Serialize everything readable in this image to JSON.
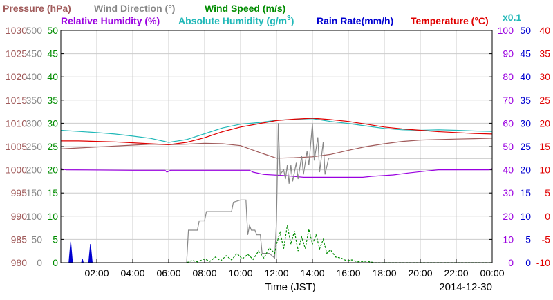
{
  "chart_data": {
    "type": "line",
    "xlabel": "Time (JST)",
    "date": "2014-12-30",
    "x_ticks": [
      "02:00",
      "04:00",
      "06:00",
      "08:00",
      "10:00",
      "12:00",
      "14:00",
      "16:00",
      "18:00",
      "20:00",
      "22:00",
      "00:00"
    ],
    "x_range_hours": [
      0,
      24
    ],
    "legend": {
      "pressure": "Pressure (hPa)",
      "wind_dir": "Wind Direction (°)",
      "wind_speed": "Wind Speed (m/s)",
      "humidity": "Relative Humidity (%)",
      "abs_humidity_prefix": "Absolute Humidity (g/m",
      "abs_humidity_exp": "3",
      "abs_humidity_suffix": ")",
      "rain": "Rain Rate(mm/h)",
      "temperature": "Temperature (°C)",
      "scale_note": "x0.1"
    },
    "axes": {
      "pressure": {
        "min": 980,
        "max": 1030,
        "ticks": [
          "980",
          "985",
          "990",
          "995",
          "1000",
          "1005",
          "1010",
          "1015",
          "1020",
          "1025",
          "1030"
        ],
        "color": "#a05a5a"
      },
      "wind_dir": {
        "min": 0,
        "max": 500,
        "ticks": [
          "0",
          "50",
          "100",
          "150",
          "200",
          "250",
          "300",
          "350",
          "400",
          "450",
          "500"
        ],
        "color": "#888888"
      },
      "wind_speed": {
        "min": 0,
        "max": 50,
        "ticks": [
          "0",
          "5",
          "10",
          "15",
          "20",
          "25",
          "30",
          "35",
          "40",
          "45",
          "50"
        ],
        "color": "#008c00"
      },
      "humidity": {
        "min": 0,
        "max": 100,
        "ticks": [
          "0",
          "10",
          "20",
          "30",
          "40",
          "50",
          "60",
          "70",
          "80",
          "90",
          "100"
        ],
        "color": "#9a00e0"
      },
      "rain": {
        "min": 0,
        "max": 50,
        "ticks": [
          "0",
          "5",
          "10",
          "15",
          "20",
          "25",
          "30",
          "35",
          "40",
          "45",
          "50"
        ],
        "color": "#0000d0"
      },
      "temperature": {
        "min": -10,
        "max": 40,
        "ticks": [
          "-10",
          "-5",
          "0",
          "5",
          "10",
          "15",
          "20",
          "25",
          "30",
          "35",
          "40"
        ],
        "color": "#e00000"
      }
    },
    "series": [
      {
        "key": "pressure",
        "color": "#a05a5a",
        "axis": "pressure",
        "points": [
          [
            0,
            1004.5
          ],
          [
            1,
            1004.7
          ],
          [
            2,
            1004.9
          ],
          [
            3,
            1005.1
          ],
          [
            4,
            1005.3
          ],
          [
            5,
            1005.5
          ],
          [
            6,
            1005.4
          ],
          [
            7,
            1005.5
          ],
          [
            8,
            1005.7
          ],
          [
            9,
            1005.6
          ],
          [
            10,
            1005.2
          ],
          [
            11,
            1003.8
          ],
          [
            12,
            1002.5
          ],
          [
            13,
            1002.6
          ],
          [
            14,
            1002.8
          ],
          [
            15,
            1003.3
          ],
          [
            16,
            1004.2
          ],
          [
            17,
            1005.0
          ],
          [
            18,
            1005.6
          ],
          [
            19,
            1006.1
          ],
          [
            20,
            1006.4
          ],
          [
            21,
            1006.5
          ],
          [
            22,
            1006.6
          ],
          [
            23,
            1006.7
          ],
          [
            24,
            1006.8
          ]
        ]
      },
      {
        "key": "abs_humidity",
        "color": "#20b8b8",
        "axis": "humidity",
        "scale_note": "x0.1",
        "points": [
          [
            0,
            57.0
          ],
          [
            1,
            56.5
          ],
          [
            2,
            56.0
          ],
          [
            3,
            55.4
          ],
          [
            4,
            54.5
          ],
          [
            5,
            53.5
          ],
          [
            6,
            51.8
          ],
          [
            7,
            53.0
          ],
          [
            8,
            55.5
          ],
          [
            9,
            58.0
          ],
          [
            10,
            59.6
          ],
          [
            11,
            60.3
          ],
          [
            12,
            61.3
          ],
          [
            13,
            61.7
          ],
          [
            14,
            62.0
          ],
          [
            15,
            60.8
          ],
          [
            16,
            59.9
          ],
          [
            17,
            58.8
          ],
          [
            18,
            57.8
          ],
          [
            19,
            57.2
          ],
          [
            20,
            57.0
          ],
          [
            21,
            57.2
          ],
          [
            22,
            57.0
          ],
          [
            23,
            56.7
          ],
          [
            24,
            56.5
          ]
        ]
      },
      {
        "key": "temperature",
        "color": "#e00000",
        "axis": "temperature",
        "points": [
          [
            0,
            16.2
          ],
          [
            1,
            16.2
          ],
          [
            2,
            16.1
          ],
          [
            3,
            16.0
          ],
          [
            4,
            15.8
          ],
          [
            5,
            15.6
          ],
          [
            6,
            15.4
          ],
          [
            7,
            15.9
          ],
          [
            8,
            16.9
          ],
          [
            9,
            18.2
          ],
          [
            10,
            19.2
          ],
          [
            11,
            19.9
          ],
          [
            12,
            20.6
          ],
          [
            13,
            20.9
          ],
          [
            14,
            21.1
          ],
          [
            15,
            20.8
          ],
          [
            16,
            20.4
          ],
          [
            17,
            19.8
          ],
          [
            18,
            19.2
          ],
          [
            19,
            18.8
          ],
          [
            20,
            18.5
          ],
          [
            21,
            18.2
          ],
          [
            22,
            18.0
          ],
          [
            23,
            17.8
          ],
          [
            24,
            17.7
          ]
        ]
      },
      {
        "key": "humidity",
        "color": "#9a00e0",
        "axis": "humidity",
        "points": [
          [
            0,
            40.5
          ],
          [
            0.3,
            40.0
          ],
          [
            4,
            39.8
          ],
          [
            5.8,
            39.8
          ],
          [
            5.9,
            39.0
          ],
          [
            6.1,
            39.8
          ],
          [
            10.5,
            39.8
          ],
          [
            10.7,
            39.0
          ],
          [
            11.3,
            38.0
          ],
          [
            12.5,
            37.5
          ],
          [
            13.5,
            36.8
          ],
          [
            15.0,
            36.8
          ],
          [
            15.5,
            36.8
          ],
          [
            16.8,
            36.8
          ],
          [
            17.3,
            37.2
          ],
          [
            18.5,
            37.8
          ],
          [
            19.3,
            38.6
          ],
          [
            20.0,
            39.2
          ],
          [
            21.0,
            40.0
          ],
          [
            23.8,
            40.0
          ],
          [
            24,
            40.5
          ]
        ]
      },
      {
        "key": "wind_dir",
        "color": "#888888",
        "axis": "wind_dir",
        "points": [
          [
            7.0,
            0
          ],
          [
            7.1,
            70
          ],
          [
            7.6,
            70
          ],
          [
            7.7,
            90
          ],
          [
            8.0,
            90
          ],
          [
            8.1,
            110
          ],
          [
            9.5,
            110
          ],
          [
            9.6,
            130
          ],
          [
            10.0,
            135
          ],
          [
            10.3,
            135
          ],
          [
            10.4,
            60
          ],
          [
            10.5,
            80
          ],
          [
            10.6,
            70
          ],
          [
            10.8,
            70
          ],
          [
            10.9,
            60
          ],
          [
            11.1,
            60
          ],
          [
            11.2,
            20
          ],
          [
            11.4,
            20
          ],
          [
            11.6,
            20
          ],
          [
            11.9,
            10
          ],
          [
            12.0,
            90
          ],
          [
            12.1,
            300
          ],
          [
            12.2,
            190
          ],
          [
            12.4,
            200
          ],
          [
            12.5,
            180
          ],
          [
            12.6,
            210
          ],
          [
            12.7,
            170
          ],
          [
            12.8,
            210
          ],
          [
            12.9,
            175
          ],
          [
            13.1,
            215
          ],
          [
            13.2,
            180
          ],
          [
            13.4,
            230
          ],
          [
            13.5,
            190
          ],
          [
            13.7,
            240
          ],
          [
            13.8,
            210
          ],
          [
            14.0,
            300
          ],
          [
            14.1,
            220
          ],
          [
            14.3,
            270
          ],
          [
            14.4,
            195
          ],
          [
            14.6,
            260
          ],
          [
            14.7,
            190
          ],
          [
            14.9,
            225
          ],
          [
            15.1,
            225
          ],
          [
            24,
            225
          ]
        ]
      },
      {
        "key": "wind_speed",
        "color": "#008c00",
        "axis": "wind_speed",
        "points": [
          [
            7.0,
            0
          ],
          [
            7.3,
            0.5
          ],
          [
            7.6,
            0.2
          ],
          [
            8.0,
            0.8
          ],
          [
            8.3,
            0.3
          ],
          [
            8.6,
            1.2
          ],
          [
            8.9,
            0.4
          ],
          [
            9.2,
            1.5
          ],
          [
            9.5,
            0.6
          ],
          [
            9.8,
            2.0
          ],
          [
            10.1,
            0.8
          ],
          [
            10.4,
            1.8
          ],
          [
            10.7,
            0.7
          ],
          [
            11.0,
            2.5
          ],
          [
            11.3,
            1.0
          ],
          [
            11.6,
            3.2
          ],
          [
            11.9,
            2.0
          ],
          [
            12.0,
            4.0
          ],
          [
            12.2,
            6.5
          ],
          [
            12.4,
            3.0
          ],
          [
            12.6,
            8.0
          ],
          [
            12.8,
            4.0
          ],
          [
            13.0,
            6.8
          ],
          [
            13.2,
            2.5
          ],
          [
            13.4,
            5.5
          ],
          [
            13.6,
            3.0
          ],
          [
            13.8,
            7.2
          ],
          [
            14.0,
            4.0
          ],
          [
            14.2,
            6.0
          ],
          [
            14.4,
            3.0
          ],
          [
            14.6,
            5.0
          ],
          [
            14.8,
            2.0
          ],
          [
            15.0,
            2.8
          ],
          [
            15.3,
            1.2
          ],
          [
            15.6,
            1.0
          ],
          [
            15.9,
            0.4
          ],
          [
            16.2,
            0.6
          ],
          [
            16.5,
            0.2
          ],
          [
            17.0,
            0.3
          ],
          [
            17.5,
            0
          ],
          [
            24,
            0
          ]
        ]
      },
      {
        "key": "rain",
        "color": "#0000d0",
        "axis": "rain",
        "points": [
          [
            0,
            0
          ],
          [
            0.45,
            0
          ],
          [
            0.55,
            4.5
          ],
          [
            0.65,
            0
          ],
          [
            1.15,
            0
          ],
          [
            1.2,
            0.8
          ],
          [
            1.25,
            0
          ],
          [
            1.55,
            0
          ],
          [
            1.65,
            4.0
          ],
          [
            1.75,
            0
          ],
          [
            24,
            0
          ]
        ]
      }
    ]
  }
}
